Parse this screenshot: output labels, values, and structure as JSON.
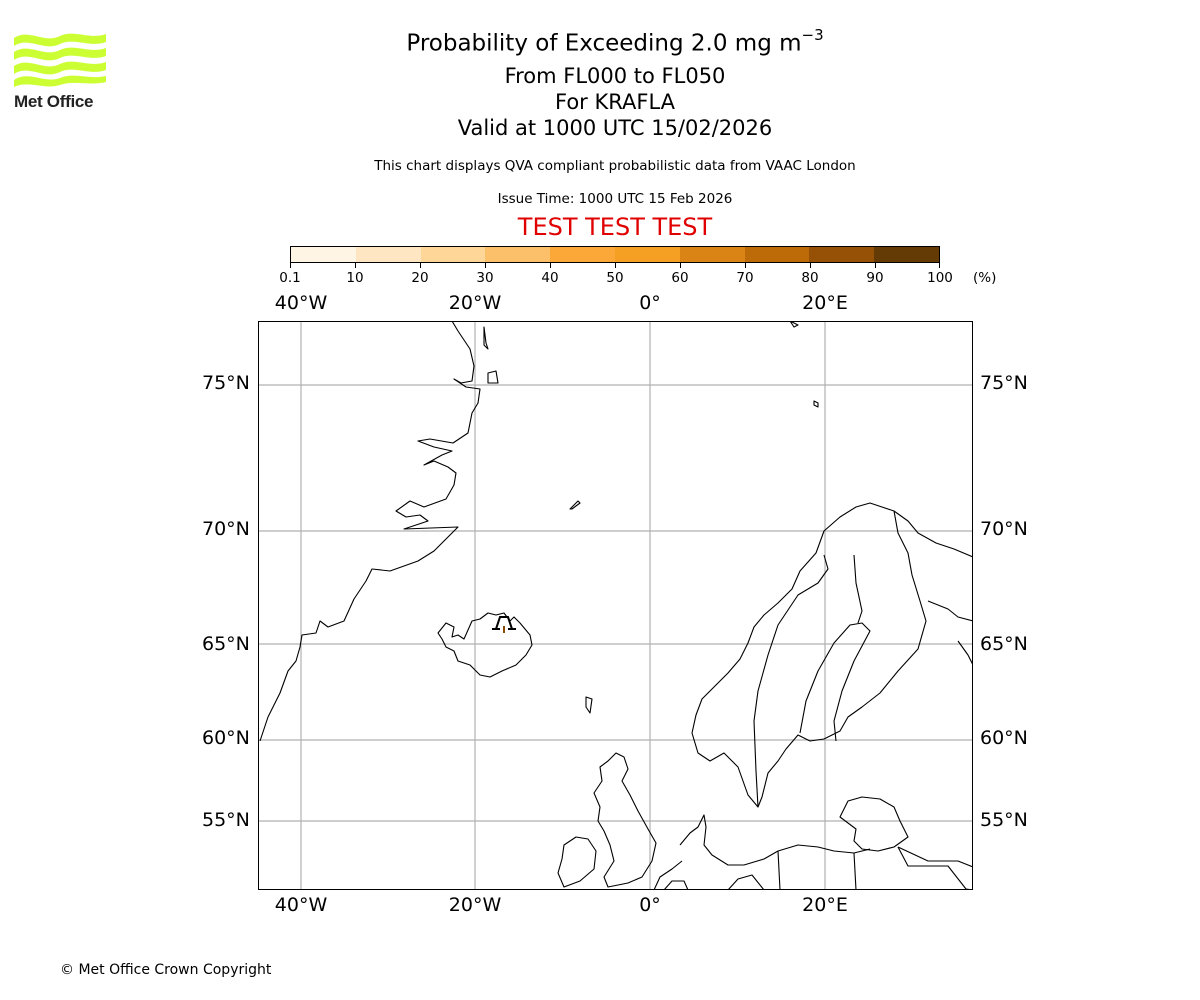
{
  "logo": {
    "text": "Met Office",
    "wave_color": "#ccff33",
    "text_color": "#222222"
  },
  "title": {
    "line1_main": "Probability of Exceeding 2.0 mg m",
    "line1_sup": "−3",
    "line2": "From FL000 to FL050",
    "line3": "For KRAFLA",
    "line4": "Valid at 1000 UTC 15/02/2026"
  },
  "subtitle": "This chart displays QVA compliant probabilistic data from VAAC London",
  "issue_time": "Issue Time: 1000 UTC 15 Feb 2026",
  "test_banner": {
    "text": "TEST TEST TEST",
    "color": "#e00000"
  },
  "colorbar": {
    "unit": "(%)",
    "ticks": [
      "0.1",
      "10",
      "20",
      "30",
      "40",
      "50",
      "60",
      "70",
      "80",
      "90",
      "100"
    ],
    "colors": [
      "#fff5e5",
      "#ffe6c2",
      "#fed698",
      "#fdc06a",
      "#fba839",
      "#f5a023",
      "#db8416",
      "#bd6b08",
      "#965106",
      "#653b05"
    ]
  },
  "map": {
    "lon_labels": [
      "40°W",
      "20°W",
      "0°",
      "20°E"
    ],
    "lat_labels": [
      "75°N",
      "70°N",
      "65°N",
      "60°N",
      "55°N"
    ],
    "volcano": {
      "name": "KRAFLA",
      "marker": "volcano-symbol"
    },
    "gridline_color": "#b0b0b0",
    "coastline_color": "#000000"
  },
  "chart_data": {
    "type": "heatmap",
    "title": "Probability of Exceeding 2.0 mg m^-3 — From FL000 to FL050 — For KRAFLA — Valid at 1000 UTC 15/02/2026",
    "subtitle": "This chart displays QVA compliant probabilistic data from VAAC London",
    "issue_time": "1000 UTC 15 Feb 2026",
    "colorbar_levels": [
      0.1,
      10,
      20,
      30,
      40,
      50,
      60,
      70,
      80,
      90,
      100
    ],
    "colorbar_unit": "%",
    "x_ticks": [
      "40°W",
      "20°W",
      "0°",
      "20°E"
    ],
    "y_ticks": [
      "75°N",
      "70°N",
      "65°N",
      "60°N",
      "55°N"
    ],
    "xlim": [
      "~45°W",
      "~36°E"
    ],
    "ylim": [
      "~52°N",
      "~77°N"
    ],
    "grid": true,
    "source_volcano": "KRAFLA",
    "probability_field": "no shaded probability areas visible"
  },
  "footer": {
    "copyright": "© Met Office Crown Copyright"
  }
}
